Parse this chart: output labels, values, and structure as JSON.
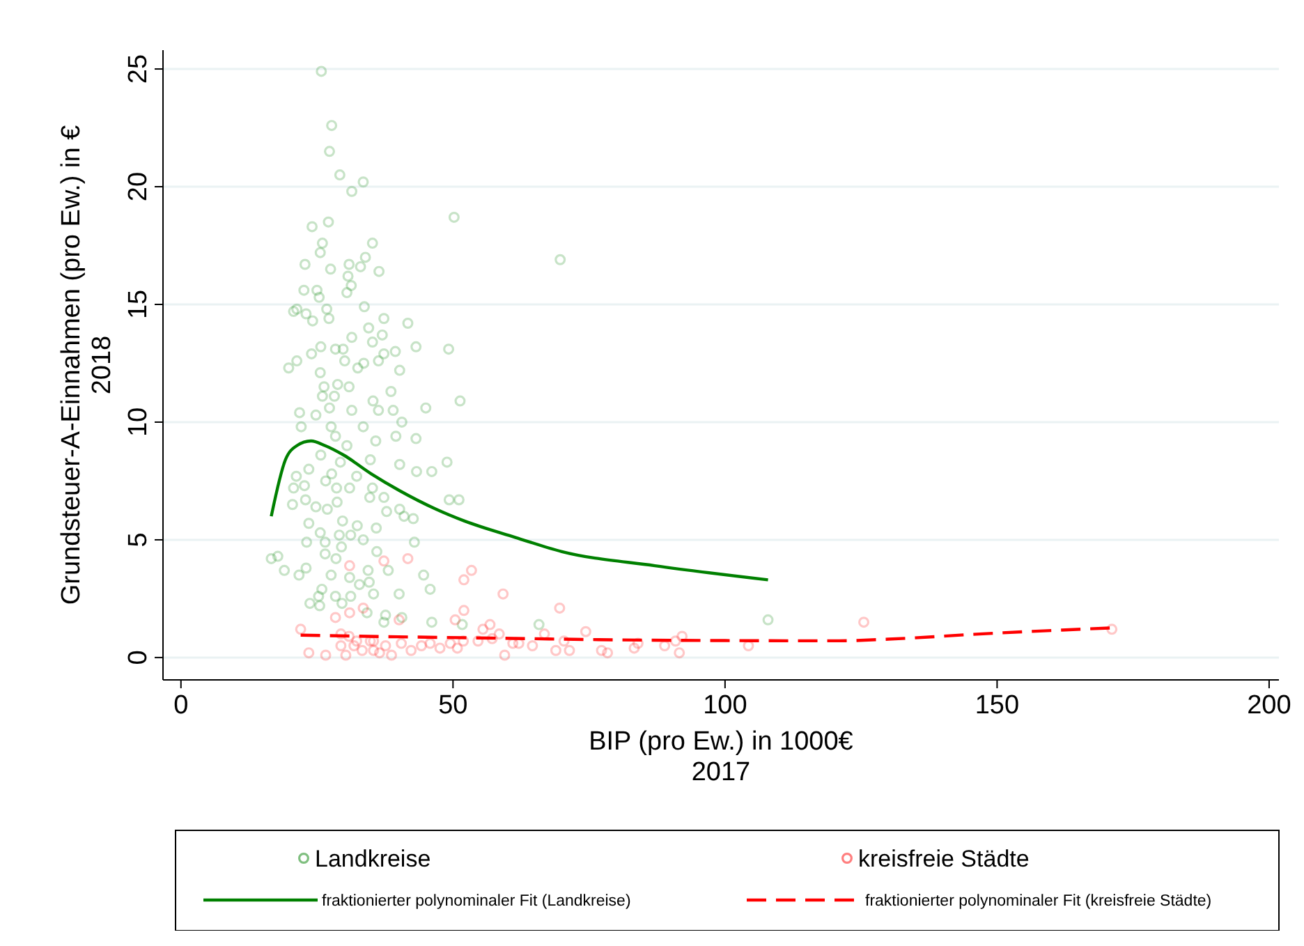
{
  "chart_data": {
    "type": "scatter",
    "xlabel": "BIP (pro Ew.) in 1000€\n2017",
    "ylabel": "Grundsteuer-A-Einnahmen (pro Ew.) in €\n2018",
    "xlim": [
      -3.3,
      201.8
    ],
    "ylim": [
      -0.95,
      25.8
    ],
    "xticks": [
      0,
      50,
      100,
      150,
      200
    ],
    "yticks": [
      0,
      5,
      10,
      15,
      20,
      25
    ],
    "grid": "y",
    "legend": "bottom",
    "series": [
      {
        "name": "Landkreise",
        "marker": "circle",
        "color": "#008000",
        "x": [
          25.8,
          27.7,
          27.3,
          29.2,
          33.5,
          31.4,
          50.2,
          27.1,
          24.1,
          35.2,
          26.0,
          25.6,
          33.9,
          30.9,
          22.8,
          33.0,
          27.5,
          36.4,
          30.7,
          31.3,
          22.6,
          25.0,
          30.5,
          25.4,
          33.7,
          21.3,
          20.7,
          26.8,
          23.0,
          24.2,
          27.2,
          37.3,
          41.7,
          34.5,
          31.4,
          37.0,
          35.2,
          43.2,
          49.2,
          39.4,
          37.3,
          28.4,
          29.8,
          24.0,
          25.7,
          21.3,
          30.1,
          33.6,
          36.3,
          19.8,
          32.5,
          40.2,
          25.6,
          26.3,
          28.8,
          30.9,
          38.6,
          26.0,
          28.2,
          35.3,
          51.3,
          45.0,
          27.3,
          31.4,
          36.3,
          39.0,
          21.8,
          22.1,
          24.8,
          40.6,
          27.6,
          33.5,
          28.4,
          39.5,
          43.2,
          35.8,
          30.5,
          25.7,
          34.8,
          40.2,
          48.9,
          29.3,
          43.3,
          46.1,
          23.5,
          21.2,
          27.7,
          32.3,
          26.6,
          35.2,
          22.7,
          20.7,
          28.6,
          31.0,
          34.7,
          37.3,
          22.9,
          28.7,
          20.5,
          24.8,
          26.9,
          37.8,
          40.2,
          49.3,
          51.1,
          41.0,
          42.7,
          23.5,
          29.7,
          32.4,
          35.9,
          25.6,
          29.1,
          31.2,
          33.5,
          23.1,
          42.9,
          26.5,
          29.5,
          16.6,
          17.8,
          19.0,
          26.5,
          36.0,
          28.5,
          23.0,
          21.7,
          27.6,
          31.0,
          34.4,
          38.1,
          44.6,
          34.6,
          32.8,
          25.9,
          45.8,
          35.4,
          40.1,
          25.3,
          28.4,
          31.2,
          23.7,
          25.5,
          29.6,
          34.2,
          37.6,
          40.6,
          46.1,
          51.7,
          37.3,
          65.8,
          107.9,
          69.7
        ],
        "values": [
          24.9,
          22.6,
          21.5,
          20.5,
          20.2,
          19.8,
          18.7,
          18.5,
          18.3,
          17.6,
          17.6,
          17.2,
          17.0,
          16.7,
          16.7,
          16.6,
          16.5,
          16.4,
          16.2,
          15.8,
          15.6,
          15.6,
          15.5,
          15.3,
          14.9,
          14.8,
          14.7,
          14.8,
          14.6,
          14.3,
          14.4,
          14.4,
          14.2,
          14.0,
          13.6,
          13.7,
          13.4,
          13.2,
          13.1,
          13.0,
          12.9,
          13.1,
          13.1,
          12.9,
          13.2,
          12.6,
          12.6,
          12.5,
          12.6,
          12.3,
          12.3,
          12.2,
          12.1,
          11.5,
          11.6,
          11.5,
          11.3,
          11.1,
          11.1,
          10.9,
          10.9,
          10.6,
          10.6,
          10.5,
          10.5,
          10.5,
          10.4,
          9.8,
          10.3,
          10.0,
          9.8,
          9.8,
          9.4,
          9.4,
          9.3,
          9.2,
          9.0,
          8.6,
          8.4,
          8.2,
          8.3,
          8.3,
          7.9,
          7.9,
          8.0,
          7.7,
          7.8,
          7.7,
          7.5,
          7.2,
          7.3,
          7.2,
          7.2,
          7.2,
          6.8,
          6.8,
          6.7,
          6.6,
          6.5,
          6.4,
          6.3,
          6.2,
          6.3,
          6.7,
          6.7,
          6.0,
          5.9,
          5.7,
          5.8,
          5.6,
          5.5,
          5.3,
          5.2,
          5.2,
          5.0,
          4.9,
          4.9,
          4.9,
          4.7,
          4.2,
          4.3,
          3.7,
          4.4,
          4.5,
          4.2,
          3.8,
          3.5,
          3.5,
          3.4,
          3.7,
          3.7,
          3.5,
          3.2,
          3.1,
          2.9,
          2.9,
          2.7,
          2.7,
          2.6,
          2.6,
          2.6,
          2.3,
          2.2,
          2.3,
          1.9,
          1.8,
          1.7,
          1.5,
          1.4,
          1.5,
          1.4,
          1.6,
          16.9
        ]
      },
      {
        "name": "kreisfreie Städte",
        "marker": "circle",
        "color": "#ff0000",
        "x": [
          41.7,
          37.3,
          31.0,
          53.4,
          52.0,
          33.5,
          31.0,
          52.0,
          59.2,
          28.4,
          40.1,
          50.4,
          22.0,
          56.8,
          55.5,
          58.5,
          23.5,
          26.6,
          29.4,
          31.8,
          33.3,
          34.8,
          35.4,
          36.5,
          37.6,
          38.7,
          40.5,
          42.3,
          44.2,
          45.8,
          47.6,
          49.5,
          50.8,
          51.9,
          54.6,
          57.2,
          59.5,
          61.0,
          30.3,
          32.3,
          30.9,
          29.4,
          35.4,
          69.6,
          66.8,
          62.1,
          64.6,
          68.9,
          70.4,
          71.4,
          74.4,
          77.3,
          78.4,
          83.3,
          84.0,
          88.9,
          90.9,
          91.6,
          92.1,
          104.3,
          125.5,
          171.1
        ],
        "values": [
          4.2,
          4.1,
          3.9,
          3.7,
          3.3,
          2.1,
          1.9,
          2.0,
          2.7,
          1.7,
          1.6,
          1.6,
          1.2,
          1.4,
          1.2,
          1.0,
          0.2,
          0.1,
          0.5,
          0.5,
          0.3,
          0.7,
          0.3,
          0.2,
          0.5,
          0.1,
          0.6,
          0.3,
          0.5,
          0.6,
          0.4,
          0.6,
          0.4,
          0.7,
          0.7,
          0.8,
          0.1,
          0.6,
          0.1,
          0.7,
          0.9,
          1.0,
          0.7,
          2.1,
          1.0,
          0.6,
          0.5,
          0.3,
          0.7,
          0.3,
          1.1,
          0.3,
          0.2,
          0.4,
          0.6,
          0.5,
          0.7,
          0.2,
          0.9,
          0.5,
          1.5,
          1.2
        ]
      },
      {
        "name": "fraktionierter polynominaler Fit (Landkreise)",
        "type": "line",
        "marker": "none",
        "line_style": "solid",
        "color": "#008000",
        "x": [
          16.6,
          19.2,
          21.3,
          23.9,
          26.5,
          29.9,
          35.0,
          40.1,
          46.9,
          52.1,
          61.5,
          70.0,
          87.1,
          107.9
        ],
        "values": [
          6.0,
          8.4,
          9.0,
          9.2,
          9.0,
          8.6,
          7.8,
          7.1,
          6.3,
          5.8,
          5.1,
          4.5,
          3.9,
          3.3
        ]
      },
      {
        "name": "fraktionierter polynominaler Fit (kreisfreie Städte)",
        "type": "line",
        "marker": "none",
        "line_style": "dashed",
        "color": "#ff0000",
        "x": [
          22.0,
          40.0,
          61.5,
          80.0,
          100.0,
          121.0,
          130.0,
          146.8,
          171.1
        ],
        "values": [
          0.95,
          0.88,
          0.81,
          0.75,
          0.72,
          0.71,
          0.78,
          1.0,
          1.26
        ]
      }
    ]
  }
}
